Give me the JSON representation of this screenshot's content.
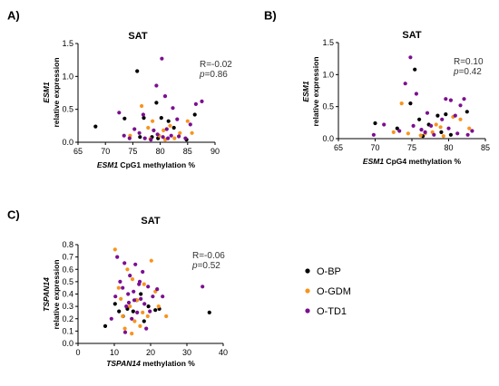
{
  "colors": {
    "O-BP": "#000000",
    "O-GDM": "#f7941d",
    "O-TD1": "#7b0f8f"
  },
  "legend": [
    {
      "label": "O-BP"
    },
    {
      "label": "O-GDM"
    },
    {
      "label": "O-TD1"
    }
  ],
  "chart_data": [
    {
      "panel": "A)",
      "type": "scatter",
      "title": "SAT",
      "xlabel_gene": "ESM1",
      "xlabel_rest": " CpG1 methylation %",
      "ylabel_gene": "ESM1",
      "ylabel_rest": "relative expression",
      "stat_r": "R=-0.02",
      "stat_p_sym": "p",
      "stat_p_val": "=0.86",
      "xlim": [
        65,
        90
      ],
      "ylim": [
        0,
        1.5
      ],
      "xticks": [
        "65",
        "70",
        "75",
        "80",
        "85",
        "90"
      ],
      "yticks": [
        "0.0",
        "0.5",
        "1.0",
        "1.5"
      ],
      "series": [
        {
          "name": "O-BP",
          "points": [
            [
              68.2,
              0.24
            ],
            [
              73.5,
              0.36
            ],
            [
              75.8,
              1.08
            ],
            [
              77.0,
              0.37
            ],
            [
              78.5,
              0.08
            ],
            [
              79.3,
              0.6
            ],
            [
              80.2,
              0.37
            ],
            [
              81.5,
              0.32
            ],
            [
              82.5,
              0.22
            ],
            [
              84.8,
              0.04
            ],
            [
              86.3,
              0.42
            ],
            [
              76.3,
              0.08
            ],
            [
              79.6,
              0.06
            ]
          ]
        },
        {
          "name": "O-GDM",
          "points": [
            [
              74.5,
              0.1
            ],
            [
              76.6,
              0.55
            ],
            [
              77.8,
              0.22
            ],
            [
              78.6,
              0.32
            ],
            [
              79.8,
              0.1
            ],
            [
              80.6,
              0.18
            ],
            [
              81.8,
              0.25
            ],
            [
              82.6,
              0.06
            ],
            [
              83.6,
              0.14
            ],
            [
              85.0,
              0.32
            ],
            [
              85.8,
              0.14
            ],
            [
              78.2,
              0.05
            ],
            [
              80.9,
              0.04
            ]
          ]
        },
        {
          "name": "O-TD1",
          "points": [
            [
              72.5,
              0.45
            ],
            [
              73.4,
              0.1
            ],
            [
              74.4,
              0.06
            ],
            [
              75.3,
              0.2
            ],
            [
              76.2,
              0.14
            ],
            [
              77.2,
              0.06
            ],
            [
              78.3,
              0.04
            ],
            [
              79.3,
              0.86
            ],
            [
              80.3,
              1.27
            ],
            [
              80.9,
              0.7
            ],
            [
              81.4,
              0.06
            ],
            [
              82.3,
              0.52
            ],
            [
              83.4,
              0.09
            ],
            [
              84.6,
              0.06
            ],
            [
              85.5,
              0.27
            ],
            [
              86.5,
              0.58
            ],
            [
              87.6,
              0.62
            ],
            [
              79.5,
              0.12
            ],
            [
              81.2,
              0.2
            ],
            [
              83.1,
              0.35
            ],
            [
              76.9,
              0.42
            ],
            [
              78.8,
              0.18
            ],
            [
              80.5,
              0.08
            ],
            [
              82.0,
              0.1
            ]
          ]
        }
      ]
    },
    {
      "panel": "B)",
      "type": "scatter",
      "title": "SAT",
      "xlabel_gene": "ESM1",
      "xlabel_rest": " CpG4 methylation %",
      "ylabel_gene": "ESM1",
      "ylabel_rest": "relative expression",
      "stat_r": "R=0.10",
      "stat_p_sym": "p",
      "stat_p_val": "=0.42",
      "xlim": [
        65,
        85
      ],
      "ylim": [
        0,
        1.5
      ],
      "xticks": [
        "65",
        "70",
        "75",
        "80",
        "85"
      ],
      "yticks": [
        "0.0",
        "0.5",
        "1.0",
        "1.5"
      ],
      "series": [
        {
          "name": "O-BP",
          "points": [
            [
              70.0,
              0.24
            ],
            [
              73.0,
              0.16
            ],
            [
              74.8,
              0.55
            ],
            [
              75.4,
              1.08
            ],
            [
              76.5,
              0.04
            ],
            [
              77.3,
              0.22
            ],
            [
              78.5,
              0.36
            ],
            [
              79.6,
              0.38
            ],
            [
              80.3,
              0.06
            ],
            [
              82.5,
              0.42
            ],
            [
              76.0,
              0.3
            ],
            [
              79.0,
              0.1
            ]
          ]
        },
        {
          "name": "O-GDM",
          "points": [
            [
              72.5,
              0.1
            ],
            [
              73.6,
              0.55
            ],
            [
              74.5,
              0.08
            ],
            [
              76.8,
              0.08
            ],
            [
              77.8,
              0.1
            ],
            [
              78.3,
              0.22
            ],
            [
              79.3,
              0.04
            ],
            [
              80.6,
              0.34
            ],
            [
              81.6,
              0.3
            ],
            [
              82.8,
              0.16
            ],
            [
              76.2,
              0.05
            ],
            [
              78.9,
              0.18
            ]
          ]
        },
        {
          "name": "O-TD1",
          "points": [
            [
              69.8,
              0.06
            ],
            [
              71.2,
              0.22
            ],
            [
              73.3,
              0.12
            ],
            [
              74.1,
              0.86
            ],
            [
              74.8,
              1.27
            ],
            [
              75.6,
              0.7
            ],
            [
              76.3,
              0.14
            ],
            [
              77.1,
              0.4
            ],
            [
              78.0,
              0.06
            ],
            [
              79.6,
              0.62
            ],
            [
              80.3,
              0.6
            ],
            [
              80.9,
              0.36
            ],
            [
              81.6,
              0.52
            ],
            [
              82.1,
              0.62
            ],
            [
              83.2,
              0.12
            ],
            [
              75.2,
              0.2
            ],
            [
              77.6,
              0.2
            ],
            [
              79.1,
              0.3
            ],
            [
              81.2,
              0.08
            ],
            [
              82.6,
              0.06
            ],
            [
              76.8,
              0.1
            ],
            [
              80.0,
              0.16
            ]
          ]
        }
      ]
    },
    {
      "panel": "C)",
      "type": "scatter",
      "title": "SAT",
      "xlabel_gene": "TSPAN14",
      "xlabel_rest": " methylation %",
      "ylabel_gene": "TSPAN14",
      "ylabel_rest": "relative expression",
      "stat_r": "R=-0.06",
      "stat_p_sym": "p",
      "stat_p_val": "=0.52",
      "xlim": [
        0,
        40
      ],
      "ylim": [
        0.0,
        0.8
      ],
      "xticks": [
        "0",
        "10",
        "20",
        "30",
        "40"
      ],
      "yticks": [
        "0.0",
        "0.1",
        "0.2",
        "0.3",
        "0.4",
        "0.5",
        "0.6",
        "0.7",
        "0.8"
      ],
      "series": [
        {
          "name": "O-BP",
          "points": [
            [
              7.5,
              0.14
            ],
            [
              10.2,
              0.32
            ],
            [
              11.3,
              0.26
            ],
            [
              12.4,
              0.22
            ],
            [
              13.6,
              0.28
            ],
            [
              15.2,
              0.26
            ],
            [
              16.1,
              0.35
            ],
            [
              17.3,
              0.4
            ],
            [
              18.2,
              0.18
            ],
            [
              19.4,
              0.3
            ],
            [
              21.3,
              0.27
            ],
            [
              22.4,
              0.28
            ],
            [
              36.2,
              0.25
            ]
          ]
        },
        {
          "name": "O-GDM",
          "points": [
            [
              10.2,
              0.76
            ],
            [
              11.2,
              0.45
            ],
            [
              12.3,
              0.22
            ],
            [
              12.9,
              0.12
            ],
            [
              13.6,
              0.6
            ],
            [
              14.3,
              0.3
            ],
            [
              15.0,
              0.52
            ],
            [
              15.6,
              0.18
            ],
            [
              16.3,
              0.35
            ],
            [
              17.1,
              0.14
            ],
            [
              18.2,
              0.48
            ],
            [
              19.2,
              0.22
            ],
            [
              20.2,
              0.67
            ],
            [
              21.3,
              0.42
            ],
            [
              22.2,
              0.3
            ],
            [
              24.3,
              0.22
            ],
            [
              11.8,
              0.36
            ],
            [
              14.8,
              0.08
            ],
            [
              17.8,
              0.25
            ]
          ]
        },
        {
          "name": "O-TD1",
          "points": [
            [
              9.2,
              0.2
            ],
            [
              10.3,
              0.38
            ],
            [
              10.8,
              0.7
            ],
            [
              11.6,
              0.5
            ],
            [
              12.3,
              0.45
            ],
            [
              12.8,
              0.65
            ],
            [
              13.3,
              0.3
            ],
            [
              13.8,
              0.4
            ],
            [
              14.3,
              0.55
            ],
            [
              14.8,
              0.2
            ],
            [
              15.3,
              0.42
            ],
            [
              15.8,
              0.64
            ],
            [
              16.3,
              0.25
            ],
            [
              16.8,
              0.48
            ],
            [
              17.3,
              0.36
            ],
            [
              17.8,
              0.58
            ],
            [
              18.3,
              0.32
            ],
            [
              18.8,
              0.12
            ],
            [
              19.3,
              0.46
            ],
            [
              19.8,
              0.26
            ],
            [
              20.6,
              0.38
            ],
            [
              21.8,
              0.44
            ],
            [
              23.3,
              0.38
            ],
            [
              34.3,
              0.46
            ],
            [
              13.0,
              0.09
            ],
            [
              15.5,
              0.35
            ],
            [
              17.0,
              0.5
            ],
            [
              14.0,
              0.33
            ]
          ]
        }
      ]
    }
  ]
}
